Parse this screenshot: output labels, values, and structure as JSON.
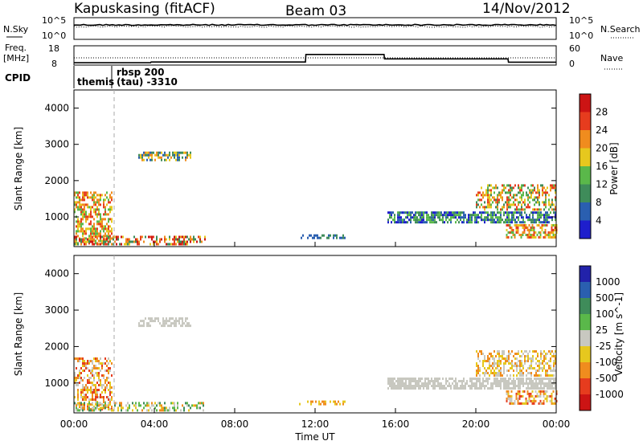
{
  "header": {
    "station": "Kapuskasing (fitACF)",
    "beam": "Beam 03",
    "date": "14/Nov/2012"
  },
  "noise_panel": {
    "left_label": "N.Sky",
    "right_label": "N.Search",
    "ticks_left": [
      "10^5",
      "10^0"
    ],
    "ticks_right": [
      "10^5",
      "10^0"
    ]
  },
  "freq_panel": {
    "left_label_top": "Freq.",
    "left_label_unit": "[MHz]",
    "right_label": "Nave",
    "ticks_left": [
      "18",
      "8"
    ],
    "ticks_right": [
      "60",
      "0"
    ],
    "freq_steps": [
      [
        0,
        9.2
      ],
      [
        15.9,
        9.2
      ],
      [
        16.0,
        9.6
      ],
      [
        48.0,
        9.6
      ],
      [
        48.1,
        13.5
      ],
      [
        64.3,
        13.5
      ],
      [
        64.4,
        11.2
      ],
      [
        90.0,
        11.2
      ],
      [
        90.1,
        9.5
      ],
      [
        100,
        9.5
      ]
    ],
    "nave_level": 0.3
  },
  "cpid": {
    "label": "CPID",
    "entries": [
      {
        "name": "themis",
        "start_hour": 0.0
      },
      {
        "name": "rbsp 200",
        "start_hour": 1.85
      },
      {
        "name": "(tau) -3310",
        "start_hour": 1.85
      }
    ]
  },
  "time_axis": {
    "label": "Time UT",
    "ticks": [
      "00:00",
      "04:00",
      "08:00",
      "12:00",
      "16:00",
      "20:00",
      "00:00"
    ],
    "range_hours": [
      0,
      24
    ]
  },
  "chart_data": [
    {
      "type": "heatmap",
      "title": "",
      "ylabel": "Slant Range [km]",
      "ylim": [
        180,
        4500
      ],
      "yticks": [
        "1000",
        "2000",
        "3000",
        "4000"
      ],
      "colorbar": {
        "label": "Power [dB]",
        "ticks": [
          "4",
          "8",
          "12",
          "16",
          "20",
          "24",
          "28"
        ],
        "colors": [
          "#1e1ecc",
          "#2a5fb0",
          "#3f8c5a",
          "#5ab84a",
          "#e6c81e",
          "#f08c1e",
          "#e63c1e",
          "#cc1414"
        ]
      },
      "scatter_regions": [
        {
          "t0": 0.0,
          "t1": 1.9,
          "r0": 250,
          "r1": 1700,
          "density": 0.55,
          "levels": [
            3,
            4,
            5,
            6
          ]
        },
        {
          "t0": 0.0,
          "t1": 6.5,
          "r0": 220,
          "r1": 480,
          "density": 0.45,
          "levels": [
            2,
            4,
            5,
            6,
            7
          ]
        },
        {
          "t0": 3.2,
          "t1": 5.8,
          "r0": 2550,
          "r1": 2800,
          "density": 0.6,
          "levels": [
            1,
            2,
            4,
            5
          ]
        },
        {
          "t0": 15.6,
          "t1": 24.0,
          "r0": 850,
          "r1": 1150,
          "density": 0.75,
          "levels": [
            0,
            1,
            2,
            3
          ]
        },
        {
          "t0": 20.0,
          "t1": 24.0,
          "r0": 1200,
          "r1": 1900,
          "density": 0.5,
          "levels": [
            2,
            3,
            4,
            5,
            6
          ]
        },
        {
          "t0": 21.5,
          "t1": 24.0,
          "r0": 450,
          "r1": 800,
          "density": 0.55,
          "levels": [
            3,
            4,
            5,
            6
          ]
        },
        {
          "t0": 11.2,
          "t1": 13.5,
          "r0": 400,
          "r1": 520,
          "density": 0.5,
          "levels": [
            1,
            2
          ]
        }
      ]
    },
    {
      "type": "heatmap",
      "title": "",
      "ylabel": "Slant Range [km]",
      "ylim": [
        180,
        4500
      ],
      "yticks": [
        "1000",
        "2000",
        "3000",
        "4000"
      ],
      "colorbar": {
        "label": "Velocity [m s^-1]",
        "ticks": [
          "1000",
          "500",
          "100",
          "25",
          "-25",
          "-100",
          "-500",
          "-1000"
        ],
        "colors": [
          "#2222aa",
          "#2a5fb0",
          "#3f8c5a",
          "#5ab84a",
          "#c8c8c0",
          "#e6c81e",
          "#f08c1e",
          "#e63c1e",
          "#cc1414"
        ]
      },
      "scatter_regions": [
        {
          "t0": 0.0,
          "t1": 1.9,
          "r0": 250,
          "r1": 1700,
          "density": 0.5,
          "levels": [
            4,
            5,
            6,
            7
          ]
        },
        {
          "t0": 0.0,
          "t1": 6.5,
          "r0": 220,
          "r1": 480,
          "density": 0.45,
          "levels": [
            2,
            3,
            4,
            5,
            6
          ]
        },
        {
          "t0": 3.2,
          "t1": 5.8,
          "r0": 2550,
          "r1": 2800,
          "density": 0.6,
          "levels": [
            4
          ]
        },
        {
          "t0": 15.6,
          "t1": 24.0,
          "r0": 850,
          "r1": 1150,
          "density": 0.75,
          "levels": [
            4
          ]
        },
        {
          "t0": 20.0,
          "t1": 24.0,
          "r0": 1200,
          "r1": 1900,
          "density": 0.5,
          "levels": [
            4,
            5,
            6
          ]
        },
        {
          "t0": 21.5,
          "t1": 24.0,
          "r0": 450,
          "r1": 800,
          "density": 0.55,
          "levels": [
            4,
            5,
            6,
            7
          ]
        },
        {
          "t0": 11.2,
          "t1": 13.5,
          "r0": 400,
          "r1": 520,
          "density": 0.5,
          "levels": [
            5,
            6
          ]
        }
      ]
    }
  ]
}
